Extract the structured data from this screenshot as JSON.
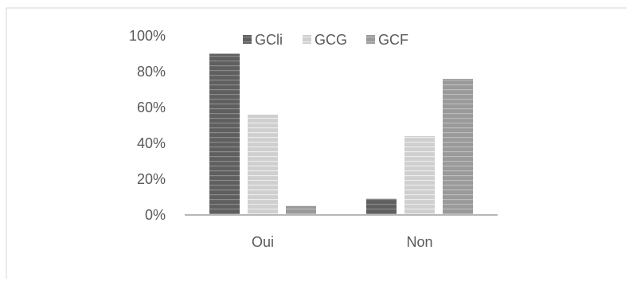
{
  "chart_data": {
    "type": "bar",
    "categories": [
      "Oui",
      "Non"
    ],
    "series": [
      {
        "name": "GCli",
        "values": [
          90,
          9
        ],
        "color": "#5f5f5f"
      },
      {
        "name": "GCG",
        "values": [
          56,
          44
        ],
        "color": "#c8c8c8"
      },
      {
        "name": "GCF",
        "values": [
          5,
          76
        ],
        "color": "#9a9a9a"
      }
    ],
    "yticks": [
      "0%",
      "20%",
      "40%",
      "60%",
      "80%",
      "100%"
    ],
    "ylim": [
      0,
      100
    ],
    "grid": false,
    "legend_position": "top"
  }
}
